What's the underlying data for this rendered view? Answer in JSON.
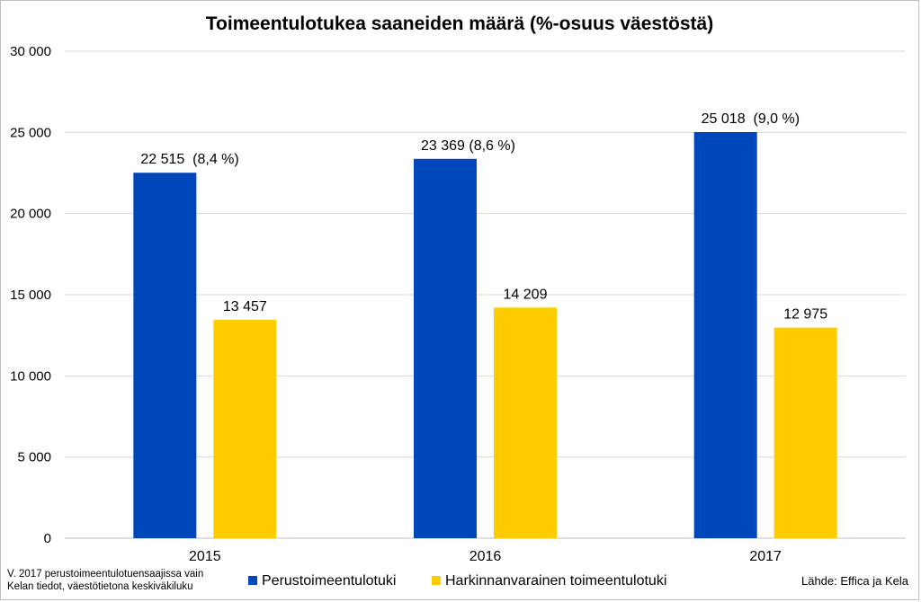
{
  "chart_data": {
    "type": "bar",
    "title": "Toimeentulotukea saaneiden määrä (%-osuus väestöstä)",
    "categories": [
      "2015",
      "2016",
      "2017"
    ],
    "series": [
      {
        "name": "Perustoimeentulotuki",
        "color": "#0047BB",
        "values": [
          22515,
          23369,
          25018
        ],
        "labels": [
          "22 515  (8,4 %)",
          "23 369 (8,6 %)",
          "25 018  (9,0 %)"
        ]
      },
      {
        "name": "Harkinnanvarainen toimeentulotuki",
        "color": "#FFCC00",
        "values": [
          13457,
          14209,
          12975
        ],
        "labels": [
          "13 457",
          "14 209",
          "12 975"
        ]
      }
    ],
    "yticks": [
      0,
      5000,
      10000,
      15000,
      20000,
      25000,
      30000
    ],
    "ytick_labels": [
      "0",
      "5 000",
      "10 000",
      "15 000",
      "20 000",
      "25 000",
      "30 000"
    ],
    "ylim": [
      0,
      30000
    ],
    "grid": true,
    "legend_position": "bottom"
  },
  "footnote": {
    "line1": "V. 2017 perustoimeentulotuensaajissa vain",
    "line2": "Kelan tiedot, väestötietona keskiväkiluku"
  },
  "source": "Lähde: Effica ja Kela"
}
